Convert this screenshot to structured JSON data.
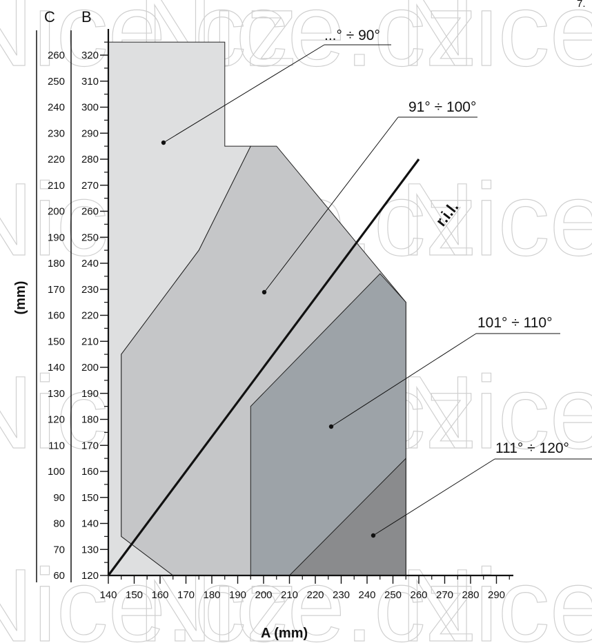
{
  "watermark": "Nice.cz",
  "corner_text": "7.",
  "chart_data": {
    "type": "area",
    "xlabel": "A (mm)",
    "ylabel": "(mm)",
    "axis_b_label": "B",
    "axis_c_label": "C",
    "x_ticks": [
      140,
      150,
      160,
      170,
      180,
      190,
      200,
      210,
      220,
      230,
      240,
      250,
      260,
      270,
      280,
      290
    ],
    "b_ticks": [
      120,
      130,
      140,
      150,
      160,
      170,
      180,
      190,
      200,
      210,
      220,
      230,
      240,
      250,
      260,
      270,
      280,
      290,
      300,
      310,
      320
    ],
    "c_ticks": [
      60,
      70,
      80,
      90,
      100,
      110,
      120,
      130,
      140,
      150,
      160,
      170,
      180,
      190,
      200,
      210,
      220,
      230,
      240,
      250,
      260
    ],
    "xlim": [
      140,
      295
    ],
    "ylim_b": [
      120,
      325
    ],
    "regions": [
      {
        "name": "...° ÷ 90°",
        "color": "#dedfe0",
        "polygon": [
          [
            140,
            120
          ],
          [
            140,
            325
          ],
          [
            185,
            325
          ],
          [
            185,
            285
          ],
          [
            195,
            285
          ],
          [
            175,
            245
          ],
          [
            145,
            205
          ],
          [
            145,
            135
          ],
          [
            165,
            120
          ]
        ]
      },
      {
        "name": "91° ÷ 100°",
        "color": "#c5c6c8",
        "polygon": [
          [
            195,
            285
          ],
          [
            205,
            285
          ],
          [
            255,
            225
          ],
          [
            255,
            120
          ],
          [
            165,
            120
          ],
          [
            145,
            135
          ],
          [
            145,
            205
          ],
          [
            175,
            245
          ]
        ]
      },
      {
        "name": "101° ÷ 110°",
        "color": "#9da3a8",
        "polygon": [
          [
            195,
            185
          ],
          [
            245,
            236
          ],
          [
            255,
            225
          ],
          [
            255,
            120
          ],
          [
            195,
            120
          ]
        ]
      },
      {
        "name": "111° ÷ 120°",
        "color": "#8a8b8d",
        "polygon": [
          [
            210,
            120
          ],
          [
            255,
            165
          ],
          [
            255,
            120
          ]
        ]
      }
    ],
    "ril_line": {
      "label": "r.i.l.",
      "points": [
        [
          140,
          120
        ],
        [
          260,
          280
        ]
      ]
    }
  }
}
